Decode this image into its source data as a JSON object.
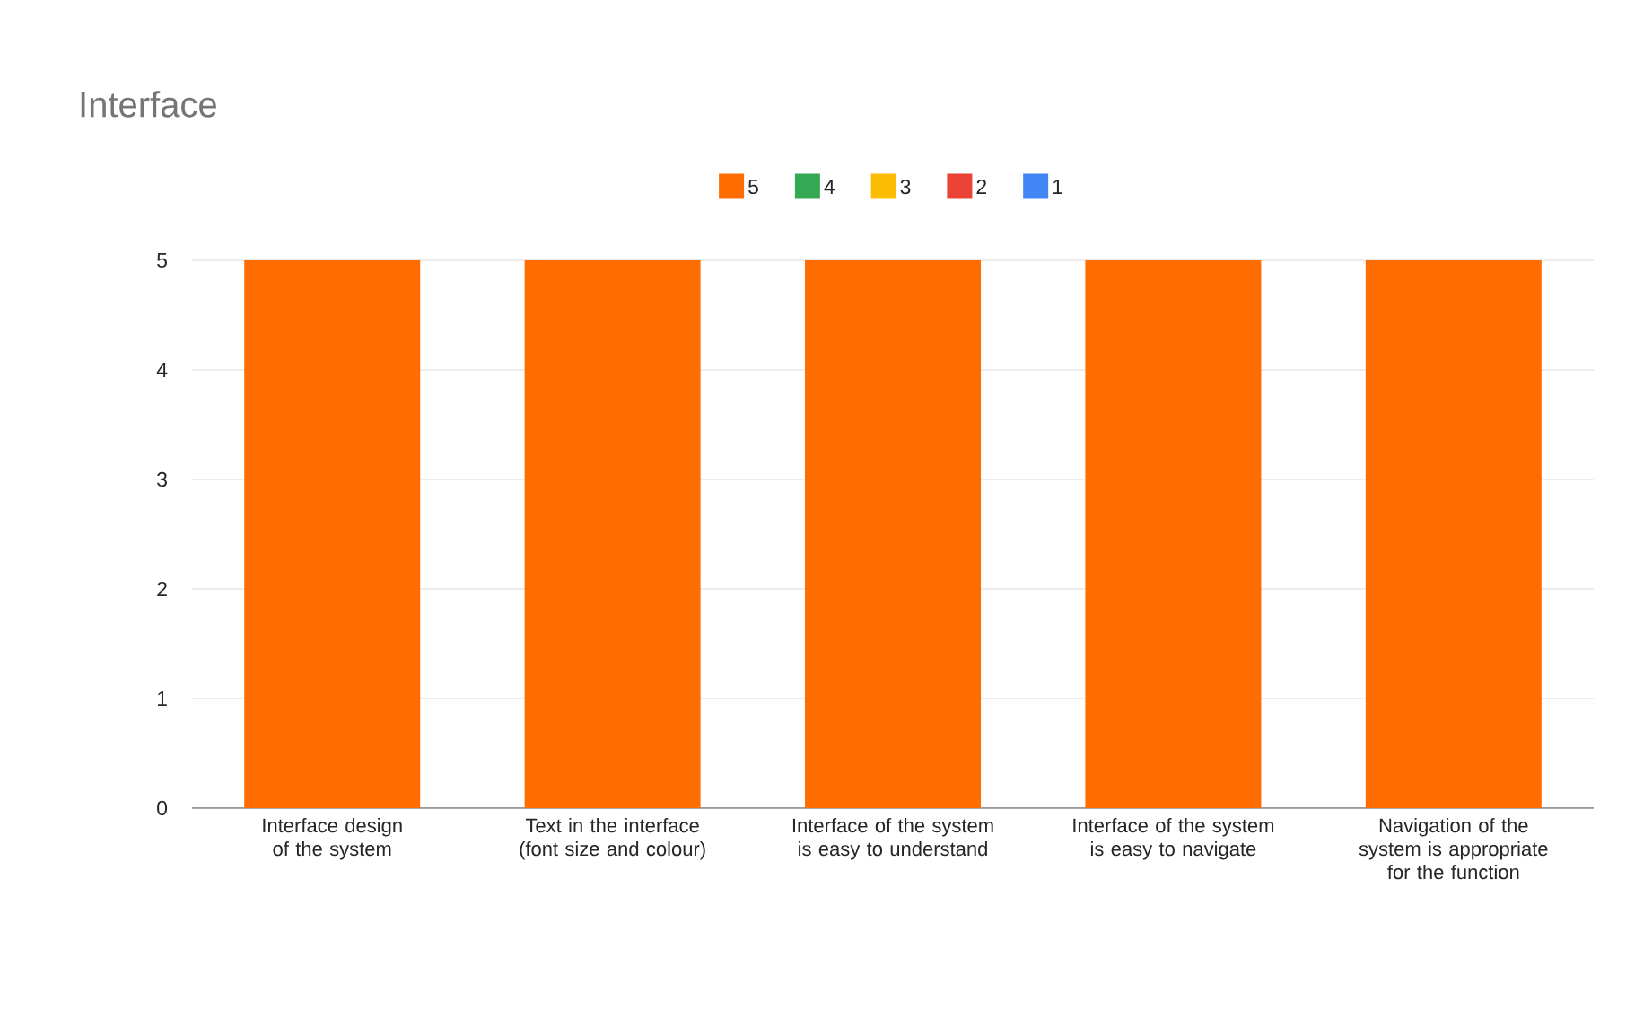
{
  "chart_data": {
    "type": "bar",
    "title": "Interface",
    "stacked": true,
    "categories": [
      "Interface design of the system",
      "Text in the interface (font size and colour)",
      "Interface of the system is easy to understand",
      "Interface of the system is easy to navigate",
      "Navigation of the system is appropriate for the function"
    ],
    "series": [
      {
        "name": "5",
        "color": "#ff6d01",
        "values": [
          5,
          5,
          5,
          5,
          5
        ]
      },
      {
        "name": "4",
        "color": "#34a853",
        "values": [
          0,
          0,
          0,
          0,
          0
        ]
      },
      {
        "name": "3",
        "color": "#fbbc04",
        "values": [
          0,
          0,
          0,
          0,
          0
        ]
      },
      {
        "name": "2",
        "color": "#ea4335",
        "values": [
          0,
          0,
          0,
          0,
          0
        ]
      },
      {
        "name": "1",
        "color": "#4285f4",
        "values": [
          0,
          0,
          0,
          0,
          0
        ]
      }
    ],
    "ylim": [
      0,
      5
    ],
    "yticks": [
      0,
      1,
      2,
      3,
      4,
      5
    ],
    "grid": "y",
    "legend": "top"
  }
}
